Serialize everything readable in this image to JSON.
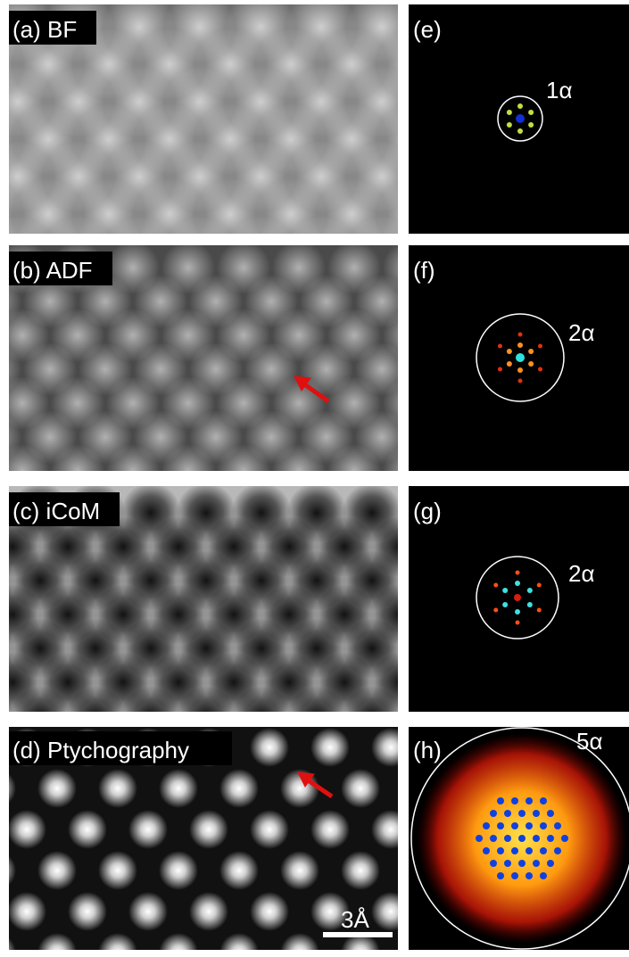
{
  "image_panels": [
    {
      "label": "(a) BF"
    },
    {
      "label": "(b) ADF"
    },
    {
      "label": "(c) iCoM"
    },
    {
      "label": "(d) Ptychography"
    }
  ],
  "fft_panels": [
    {
      "label": "(e)",
      "annotation": "1α"
    },
    {
      "label": "(f)",
      "annotation": "2α"
    },
    {
      "label": "(g)",
      "annotation": "2α"
    },
    {
      "label": "(h)",
      "annotation": "5α"
    }
  ],
  "scale_bar": "3Å"
}
